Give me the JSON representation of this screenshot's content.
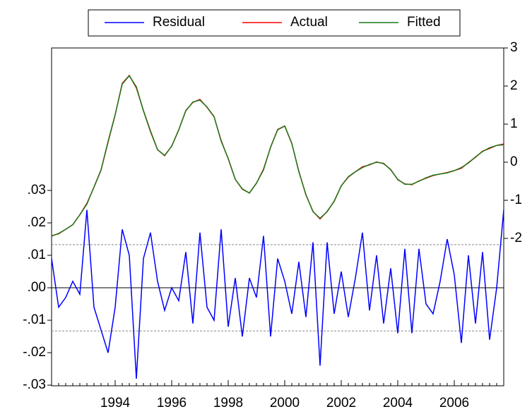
{
  "chart_data": {
    "type": "line",
    "x": [
      1991.75,
      1992,
      1992.25,
      1992.5,
      1992.75,
      1993,
      1993.25,
      1993.5,
      1993.75,
      1994,
      1994.25,
      1994.5,
      1994.75,
      1995,
      1995.25,
      1995.5,
      1995.75,
      1996,
      1996.25,
      1996.5,
      1996.75,
      1997,
      1997.25,
      1997.5,
      1997.75,
      1998,
      1998.25,
      1998.5,
      1998.75,
      1999,
      1999.25,
      1999.5,
      1999.75,
      2000,
      2000.25,
      2000.5,
      2000.75,
      2001,
      2001.25,
      2001.5,
      2001.75,
      2002,
      2002.25,
      2002.5,
      2002.75,
      2003,
      2003.25,
      2003.5,
      2003.75,
      2004,
      2004.25,
      2004.5,
      2004.75,
      2005,
      2005.25,
      2005.5,
      2005.75,
      2006,
      2006.25,
      2006.5,
      2006.75,
      2007,
      2007.25,
      2007.5,
      2007.75
    ],
    "series": [
      {
        "name": "Residual",
        "color": "#0000ff",
        "values": [
          0.009,
          -0.006,
          -0.003,
          0.002,
          -0.002,
          0.024,
          -0.006,
          -0.013,
          -0.02,
          -0.006,
          0.018,
          0.01,
          -0.028,
          0.009,
          0.017,
          0.002,
          -0.007,
          0.0,
          -0.004,
          0.011,
          -0.011,
          0.017,
          -0.006,
          -0.01,
          0.018,
          -0.012,
          0.003,
          -0.015,
          0.003,
          -0.003,
          0.016,
          -0.015,
          0.009,
          0.002,
          -0.008,
          0.008,
          -0.009,
          0.014,
          -0.024,
          0.014,
          -0.008,
          0.005,
          -0.009,
          0.003,
          0.017,
          -0.007,
          0.01,
          -0.011,
          0.006,
          -0.014,
          0.012,
          -0.014,
          0.012,
          -0.005,
          -0.008,
          0.002,
          0.015,
          0.004,
          -0.017,
          0.01,
          -0.011,
          0.011,
          -0.016,
          0.0,
          0.024
        ]
      },
      {
        "name": "Actual",
        "color": "#ff0000",
        "axis": "y2",
        "values": [
          -1.93,
          -1.88,
          -1.76,
          -1.64,
          -1.38,
          -1.08,
          -0.66,
          -0.21,
          0.53,
          1.24,
          2.07,
          2.28,
          1.95,
          1.36,
          0.82,
          0.33,
          0.17,
          0.42,
          0.85,
          1.36,
          1.57,
          1.65,
          1.44,
          1.19,
          0.57,
          0.09,
          -0.45,
          -0.71,
          -0.81,
          -0.55,
          -0.18,
          0.39,
          0.86,
          0.95,
          0.49,
          -0.24,
          -0.86,
          -1.29,
          -1.49,
          -1.29,
          -1.03,
          -0.62,
          -0.39,
          -0.25,
          -0.12,
          -0.07,
          0.01,
          -0.04,
          -0.19,
          -0.46,
          -0.57,
          -0.59,
          -0.49,
          -0.42,
          -0.35,
          -0.31,
          -0.27,
          -0.22,
          -0.16,
          -0.01,
          0.13,
          0.29,
          0.36,
          0.44,
          0.48
        ]
      },
      {
        "name": "Fitted",
        "color": "#1a7a1a",
        "axis": "y2",
        "values": [
          -1.94,
          -1.87,
          -1.76,
          -1.64,
          -1.38,
          -1.1,
          -0.65,
          -0.2,
          0.55,
          1.25,
          2.05,
          2.27,
          1.98,
          1.35,
          0.8,
          0.33,
          0.18,
          0.42,
          0.85,
          1.35,
          1.58,
          1.63,
          1.45,
          1.2,
          0.55,
          0.1,
          -0.45,
          -0.7,
          -0.81,
          -0.55,
          -0.2,
          0.4,
          0.85,
          0.95,
          0.5,
          -0.25,
          -0.85,
          -1.3,
          -1.47,
          -1.3,
          -1.02,
          -0.62,
          -0.38,
          -0.25,
          -0.14,
          -0.06,
          0.0,
          -0.03,
          -0.2,
          -0.45,
          -0.58,
          -0.58,
          -0.5,
          -0.41,
          -0.34,
          -0.31,
          -0.28,
          -0.22,
          -0.14,
          -0.02,
          0.14,
          0.28,
          0.38,
          0.44,
          0.46
        ]
      }
    ],
    "xlim": [
      1991.75,
      2007.75
    ],
    "xticks": [
      1994,
      1996,
      1998,
      2000,
      2002,
      2004,
      2006
    ],
    "ylim": [
      -0.0302,
      0.0739
    ],
    "yticks": [
      {
        "value": 0.03,
        "label": ".03"
      },
      {
        "value": 0.02,
        "label": ".02"
      },
      {
        "value": 0.01,
        "label": ".01"
      },
      {
        "value": 0,
        "label": ".00"
      },
      {
        "value": -0.01,
        "label": "-.01"
      },
      {
        "value": -0.02,
        "label": "-.02"
      },
      {
        "value": -0.03,
        "label": "-.03"
      }
    ],
    "y2lim": [
      -5.87,
      3
    ],
    "y2ticks": [
      3,
      2,
      1,
      0,
      -1,
      -2
    ],
    "std_band": [
      -0.0133,
      0.0133
    ]
  }
}
